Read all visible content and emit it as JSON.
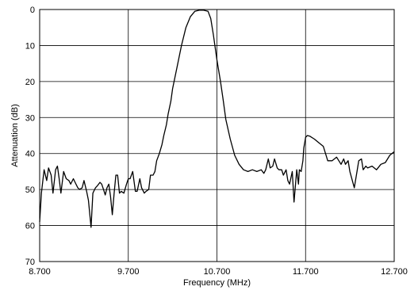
{
  "chart_data": {
    "type": "line",
    "title": "",
    "xlabel": "Frequency (MHz)",
    "ylabel": "Attenuation (dB)",
    "xlim": [
      8.7,
      12.7
    ],
    "ylim": [
      0,
      70
    ],
    "y_inverted": true,
    "grid": true,
    "x_ticks": [
      8.7,
      9.7,
      10.7,
      11.7,
      12.7
    ],
    "x_tick_labels": [
      "8.700",
      "9.700",
      "10.700",
      "11.700",
      "12.700"
    ],
    "y_ticks": [
      0,
      10,
      20,
      30,
      40,
      50,
      60,
      70
    ],
    "y_tick_labels": [
      "0",
      "10",
      "20",
      "30",
      "40",
      "50",
      "60",
      "70"
    ],
    "series": [
      {
        "color": "#000000",
        "x": [
          8.7,
          8.72,
          8.75,
          8.78,
          8.8,
          8.83,
          8.85,
          8.88,
          8.9,
          8.92,
          8.94,
          8.97,
          9.0,
          9.03,
          9.05,
          9.08,
          9.1,
          9.13,
          9.15,
          9.18,
          9.2,
          9.23,
          9.25,
          9.28,
          9.3,
          9.33,
          9.35,
          9.38,
          9.4,
          9.42,
          9.44,
          9.46,
          9.48,
          9.5,
          9.52,
          9.54,
          9.56,
          9.58,
          9.6,
          9.62,
          9.65,
          9.68,
          9.7,
          9.72,
          9.75,
          9.78,
          9.8,
          9.83,
          9.85,
          9.88,
          9.9,
          9.93,
          9.95,
          9.98,
          10.0,
          10.02,
          10.05,
          10.08,
          10.1,
          10.13,
          10.15,
          10.18,
          10.2,
          10.25,
          10.3,
          10.35,
          10.4,
          10.45,
          10.5,
          10.55,
          10.6,
          10.63,
          10.66,
          10.7,
          10.74,
          10.77,
          10.8,
          10.85,
          10.9,
          10.95,
          11.0,
          11.05,
          11.1,
          11.15,
          11.2,
          11.23,
          11.25,
          11.28,
          11.3,
          11.33,
          11.35,
          11.38,
          11.4,
          11.43,
          11.45,
          11.48,
          11.5,
          11.52,
          11.55,
          11.57,
          11.6,
          11.62,
          11.63,
          11.65,
          11.67,
          11.68,
          11.7,
          11.72,
          11.75,
          11.8,
          11.85,
          11.9,
          11.95,
          12.0,
          12.05,
          12.1,
          12.13,
          12.15,
          12.18,
          12.2,
          12.25,
          12.28,
          12.3,
          12.33,
          12.35,
          12.38,
          12.4,
          12.45,
          12.5,
          12.55,
          12.6,
          12.65,
          12.7
        ],
        "y": [
          59,
          51,
          44.5,
          47.5,
          44,
          46,
          51,
          44.5,
          43.5,
          47,
          51,
          45,
          47,
          47.5,
          48.5,
          47,
          48,
          49.5,
          50,
          49.5,
          47.5,
          50.5,
          53,
          60.5,
          51,
          49.5,
          49,
          48,
          48.5,
          50,
          51.5,
          49.5,
          48.5,
          52,
          57,
          51,
          46,
          46,
          51,
          50.5,
          51,
          48.5,
          47,
          47,
          45,
          50.5,
          50.5,
          47,
          49.5,
          51,
          50.5,
          50,
          46,
          46,
          45,
          42,
          40,
          37.5,
          35,
          32,
          29,
          25.5,
          22,
          16,
          10,
          5,
          2,
          0.5,
          0.2,
          0.2,
          0.5,
          2.5,
          7,
          14,
          20,
          25,
          30.5,
          36,
          40.5,
          43,
          44.5,
          45,
          44.5,
          45,
          44.5,
          45.5,
          44.5,
          41.5,
          44,
          43.5,
          41.5,
          44,
          44.5,
          44.5,
          46,
          44.5,
          47.5,
          48.5,
          45,
          53.5,
          44.5,
          48.5,
          44.5,
          45,
          42,
          38.5,
          35.5,
          35,
          35.2,
          36,
          37,
          38,
          42,
          42,
          41,
          43,
          41.5,
          43,
          42,
          45,
          49.5,
          45,
          42,
          41.5,
          44.5,
          43.5,
          44,
          43.5,
          44.5,
          43,
          42.5,
          40.5,
          39.5
        ]
      }
    ]
  }
}
